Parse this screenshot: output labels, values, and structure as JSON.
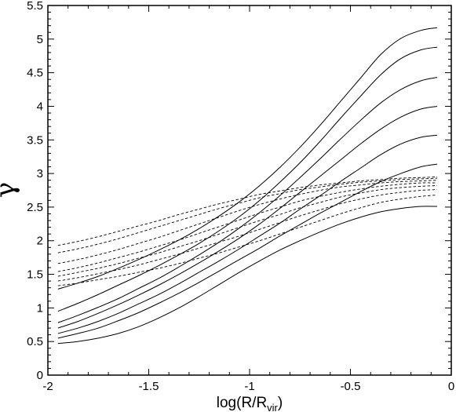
{
  "chart_data": {
    "type": "line",
    "xlabel": {
      "base": "log(R/R",
      "sub": "vir",
      "close": ")"
    },
    "ylabel": "γ",
    "xlim": [
      -2,
      0
    ],
    "ylim": [
      0,
      5.5
    ],
    "grid": false,
    "legend": "none",
    "xticks": [
      -2,
      -1.5,
      -1,
      -0.5,
      0
    ],
    "xtick_labels": [
      "-2",
      "-1.5",
      "-1",
      "-0.5",
      "0"
    ],
    "yticks": [
      0,
      0.5,
      1,
      1.5,
      2,
      2.5,
      3,
      3.5,
      4,
      4.5,
      5,
      5.5
    ],
    "ytick_labels": [
      "0",
      "0.5",
      "1",
      "1.5",
      "2",
      "2.5",
      "3",
      "3.5",
      "4",
      "4.5",
      "5",
      "5.5"
    ],
    "x": [
      -1.95,
      -1.85,
      -1.75,
      -1.65,
      -1.55,
      -1.45,
      -1.35,
      -1.25,
      -1.15,
      -1.05,
      -0.95,
      -0.85,
      -0.75,
      -0.65,
      -0.55,
      -0.45,
      -0.35,
      -0.25,
      -0.15,
      -0.07
    ],
    "solid_series": [
      {
        "values": [
          0.47,
          0.5,
          0.55,
          0.62,
          0.72,
          0.85,
          1.0,
          1.17,
          1.35,
          1.53,
          1.7,
          1.86,
          2.0,
          2.13,
          2.25,
          2.35,
          2.43,
          2.48,
          2.51,
          2.51
        ]
      },
      {
        "values": [
          0.55,
          0.62,
          0.7,
          0.81,
          0.93,
          1.07,
          1.22,
          1.38,
          1.55,
          1.72,
          1.89,
          2.07,
          2.24,
          2.41,
          2.57,
          2.73,
          2.88,
          3.0,
          3.1,
          3.14
        ]
      },
      {
        "values": [
          0.62,
          0.7,
          0.8,
          0.92,
          1.06,
          1.2,
          1.36,
          1.53,
          1.7,
          1.88,
          2.07,
          2.26,
          2.47,
          2.67,
          2.88,
          3.08,
          3.28,
          3.44,
          3.54,
          3.57
        ]
      },
      {
        "values": [
          0.7,
          0.8,
          0.92,
          1.05,
          1.19,
          1.34,
          1.5,
          1.67,
          1.85,
          2.04,
          2.25,
          2.48,
          2.72,
          2.96,
          3.2,
          3.44,
          3.66,
          3.84,
          3.96,
          4.0
        ]
      },
      {
        "values": [
          0.78,
          0.89,
          1.01,
          1.14,
          1.29,
          1.44,
          1.61,
          1.79,
          1.98,
          2.19,
          2.42,
          2.67,
          2.94,
          3.22,
          3.51,
          3.79,
          4.05,
          4.25,
          4.38,
          4.43
        ]
      },
      {
        "values": [
          0.95,
          1.07,
          1.2,
          1.34,
          1.48,
          1.63,
          1.79,
          1.96,
          2.15,
          2.36,
          2.6,
          2.87,
          3.16,
          3.48,
          3.82,
          4.15,
          4.47,
          4.71,
          4.84,
          4.88
        ]
      },
      {
        "values": [
          1.28,
          1.37,
          1.47,
          1.59,
          1.72,
          1.86,
          2.01,
          2.18,
          2.37,
          2.58,
          2.82,
          3.09,
          3.39,
          3.72,
          4.07,
          4.42,
          4.77,
          5.01,
          5.13,
          5.17
        ]
      }
    ],
    "dashed_series": [
      {
        "values": [
          1.33,
          1.37,
          1.42,
          1.47,
          1.53,
          1.59,
          1.66,
          1.74,
          1.82,
          1.91,
          2.0,
          2.1,
          2.2,
          2.3,
          2.4,
          2.49,
          2.57,
          2.62,
          2.66,
          2.68
        ]
      },
      {
        "values": [
          1.4,
          1.45,
          1.51,
          1.57,
          1.64,
          1.72,
          1.8,
          1.89,
          1.98,
          2.07,
          2.17,
          2.27,
          2.37,
          2.46,
          2.55,
          2.62,
          2.68,
          2.72,
          2.75,
          2.76
        ]
      },
      {
        "values": [
          1.47,
          1.53,
          1.59,
          1.66,
          1.74,
          1.82,
          1.91,
          2.0,
          2.1,
          2.2,
          2.3,
          2.39,
          2.49,
          2.57,
          2.65,
          2.71,
          2.76,
          2.79,
          2.81,
          2.82
        ]
      },
      {
        "values": [
          1.54,
          1.6,
          1.67,
          1.75,
          1.83,
          1.92,
          2.01,
          2.11,
          2.21,
          2.31,
          2.41,
          2.5,
          2.59,
          2.66,
          2.72,
          2.77,
          2.81,
          2.84,
          2.86,
          2.86
        ]
      },
      {
        "values": [
          1.66,
          1.72,
          1.79,
          1.87,
          1.96,
          2.05,
          2.15,
          2.25,
          2.35,
          2.45,
          2.54,
          2.62,
          2.69,
          2.75,
          2.8,
          2.83,
          2.86,
          2.88,
          2.89,
          2.9
        ]
      },
      {
        "values": [
          1.82,
          1.88,
          1.95,
          2.03,
          2.12,
          2.21,
          2.3,
          2.39,
          2.48,
          2.56,
          2.64,
          2.7,
          2.76,
          2.8,
          2.84,
          2.87,
          2.89,
          2.91,
          2.92,
          2.93
        ]
      },
      {
        "values": [
          1.93,
          1.99,
          2.06,
          2.14,
          2.22,
          2.3,
          2.39,
          2.47,
          2.55,
          2.62,
          2.69,
          2.74,
          2.79,
          2.83,
          2.86,
          2.89,
          2.91,
          2.93,
          2.94,
          2.95
        ]
      }
    ],
    "colors": {
      "lines": "#000000",
      "axes": "#000000",
      "background": "#ffffff"
    }
  }
}
